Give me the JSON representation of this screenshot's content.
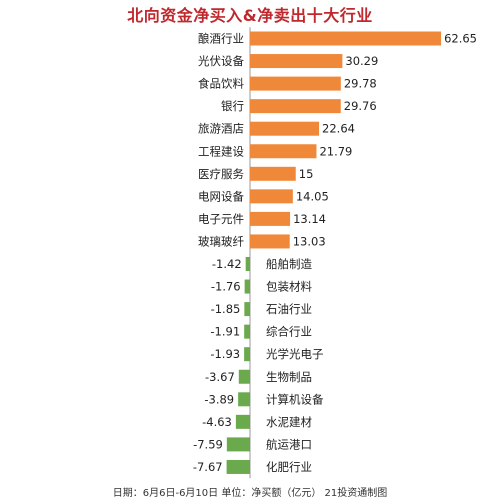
{
  "title": "北向资金净买入&净卖出十大行业",
  "footer": "日期：6月6日-6月10日 单位：净买额（亿元） 21投资通制图",
  "colors": {
    "title": "#c0282d",
    "positive_bar": "#f0883a",
    "negative_bar": "#6aaa4c",
    "text": "#222222",
    "axis": "#999999"
  },
  "chart_data": {
    "type": "bar",
    "orientation": "horizontal",
    "title": "北向资金净买入&净卖出十大行业",
    "categories": [
      "酿酒行业",
      "光伏设备",
      "食品饮料",
      "银行",
      "旅游酒店",
      "工程建设",
      "医疗服务",
      "电网设备",
      "电子元件",
      "玻璃玻纤",
      "船舶制造",
      "包装材料",
      "石油行业",
      "综合行业",
      "光学光电子",
      "生物制品",
      "计算机设备",
      "水泥建材",
      "航运港口",
      "化肥行业"
    ],
    "values": [
      62.65,
      30.29,
      29.78,
      29.76,
      22.64,
      21.79,
      15,
      14.05,
      13.14,
      13.03,
      -1.42,
      -1.76,
      -1.85,
      -1.91,
      -1.93,
      -3.67,
      -3.89,
      -4.63,
      -7.59,
      -7.67
    ],
    "value_labels": [
      "62.65",
      "30.29",
      "29.78",
      "29.76",
      "22.64",
      "21.79",
      "15",
      "14.05",
      "13.14",
      "13.03",
      "-1.42",
      "-1.76",
      "-1.85",
      "-1.91",
      "-1.93",
      "-3.67",
      "-3.89",
      "-4.63",
      "-7.59",
      "-7.67"
    ],
    "unit": "亿元",
    "grid": false,
    "legend": "none"
  }
}
